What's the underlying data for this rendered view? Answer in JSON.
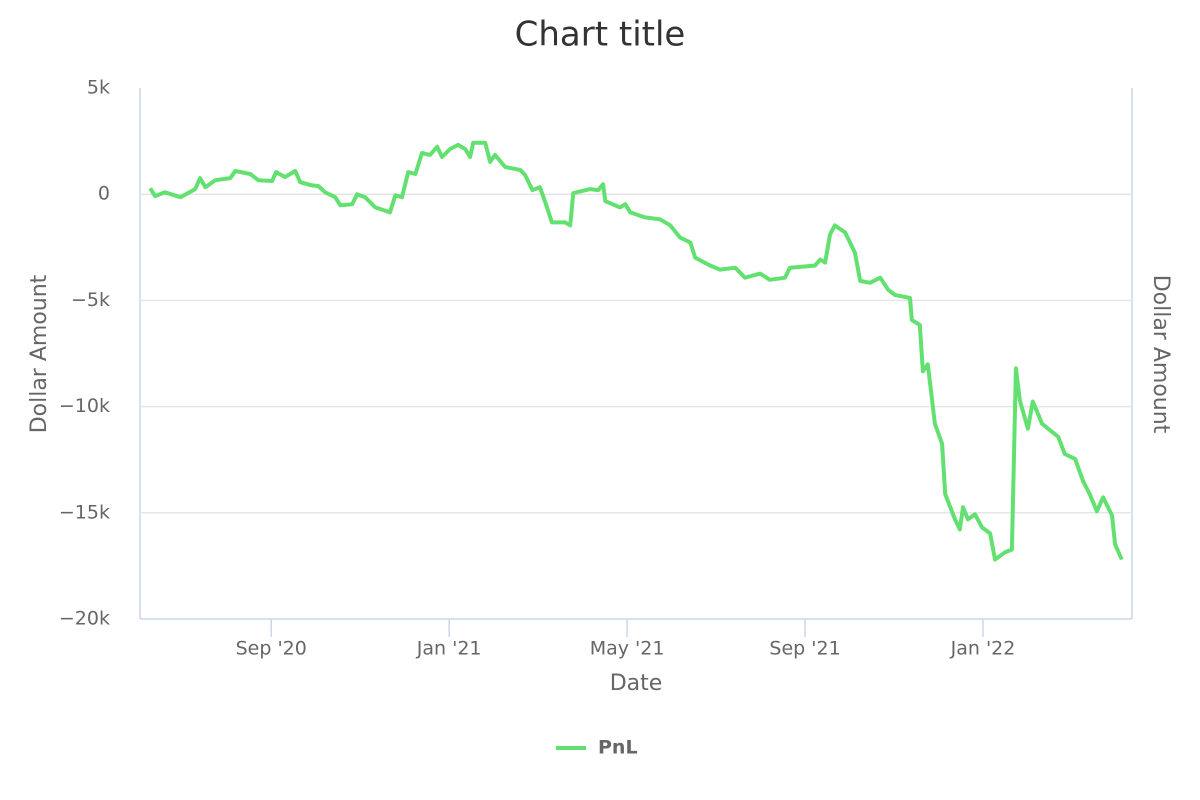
{
  "chart_data": {
    "type": "line",
    "title": "Chart title",
    "x_label": "Date",
    "y_label": "Dollar Amount",
    "y2_label": "Dollar Amount",
    "xlim": [
      5.05,
      27.35
    ],
    "xticks": [
      {
        "value": 8,
        "label": "Sep '20"
      },
      {
        "value": 12,
        "label": "Jan '21"
      },
      {
        "value": 16,
        "label": "May '21"
      },
      {
        "value": 20,
        "label": "Sep '21"
      },
      {
        "value": 24,
        "label": "Jan '22"
      }
    ],
    "ylim": [
      -20000,
      5000
    ],
    "yticks": [
      {
        "value": 5000,
        "label": "5k"
      },
      0,
      {
        "value": -5000,
        "label": "−5k"
      },
      {
        "value": -10000,
        "label": "−10k"
      },
      {
        "value": -15000,
        "label": "−15k"
      },
      {
        "value": -20000,
        "label": "−20k"
      }
    ],
    "grid": true,
    "legend": "bottom",
    "series": [
      {
        "name": "PnL",
        "color": "#62e070",
        "x": [
          5.28,
          5.39,
          5.61,
          5.96,
          6.29,
          6.4,
          6.52,
          6.74,
          7.08,
          7.19,
          7.53,
          7.71,
          8.02,
          8.11,
          8.31,
          8.54,
          8.65,
          8.88,
          9.06,
          9.21,
          9.44,
          9.55,
          9.82,
          9.93,
          10.11,
          10.34,
          10.67,
          10.79,
          10.94,
          11.08,
          11.24,
          11.39,
          11.57,
          11.73,
          11.84,
          12.02,
          12.2,
          12.36,
          12.47,
          12.54,
          12.81,
          12.92,
          13.03,
          13.26,
          13.6,
          13.71,
          13.87,
          14.04,
          14.16,
          14.31,
          14.61,
          14.72,
          14.79,
          15.17,
          15.35,
          15.46,
          15.51,
          15.84,
          15.96,
          16.07,
          16.4,
          16.74,
          16.97,
          17.19,
          17.42,
          17.53,
          17.87,
          18.09,
          18.43,
          18.65,
          18.99,
          19.21,
          19.55,
          19.66,
          20.22,
          20.34,
          20.45,
          20.56,
          20.67,
          20.9,
          21.12,
          21.24,
          21.46,
          21.69,
          21.87,
          22.02,
          22.36,
          22.4,
          22.58,
          22.65,
          22.76,
          22.92,
          23.08,
          23.15,
          23.37,
          23.48,
          23.55,
          23.66,
          23.82,
          23.98,
          24.16,
          24.27,
          24.49,
          24.65,
          24.74,
          24.83,
          25.01,
          25.12,
          25.33,
          25.69,
          25.84,
          26.07,
          26.25,
          26.4,
          26.56,
          26.7,
          26.9,
          26.97,
          27.12
        ],
        "values": [
          280,
          -90,
          90,
          -140,
          240,
          760,
          330,
          660,
          760,
          1090,
          950,
          660,
          620,
          1040,
          810,
          1090,
          570,
          430,
          380,
          90,
          -140,
          -520,
          -470,
          0,
          -140,
          -620,
          -850,
          -50,
          -140,
          1040,
          950,
          1940,
          1850,
          2230,
          1750,
          2130,
          2320,
          2130,
          1750,
          2420,
          2420,
          1520,
          1850,
          1280,
          1140,
          900,
          190,
          330,
          -380,
          -1330,
          -1330,
          -1470,
          50,
          240,
          190,
          470,
          -330,
          -620,
          -470,
          -850,
          -1090,
          -1180,
          -1470,
          -2040,
          -2270,
          -2990,
          -3360,
          -3550,
          -3460,
          -3930,
          -3740,
          -4030,
          -3930,
          -3460,
          -3360,
          -3080,
          -3220,
          -1900,
          -1470,
          -1800,
          -2750,
          -4080,
          -4170,
          -3930,
          -4500,
          -4740,
          -4880,
          -5920,
          -6160,
          -8340,
          -8010,
          -10810,
          -11750,
          -14120,
          -15310,
          -15780,
          -14740,
          -15310,
          -15070,
          -15690,
          -15970,
          -17200,
          -16870,
          -16730,
          -8200,
          -9720,
          -11040,
          -9760,
          -10810,
          -11420,
          -12230,
          -12460,
          -13510,
          -14120,
          -14930,
          -14270,
          -15120,
          -16490,
          -17200
        ]
      }
    ]
  }
}
